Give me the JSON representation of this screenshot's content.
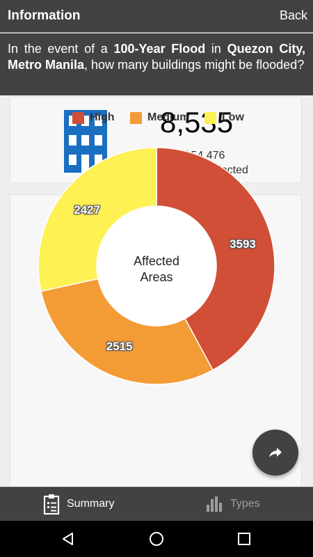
{
  "header": {
    "title": "Information",
    "back_label": "Back"
  },
  "question": {
    "prefix": "In the event of a ",
    "scenario": "100-Year Flood",
    "mid": " in ",
    "location": "Quezon City, Metro Manila",
    "suffix": ", how many buildings might be flooded?"
  },
  "summary": {
    "icon": "building-icon",
    "value": "8,535",
    "out_of": "out of 54,476",
    "caption": "Buildings Affected"
  },
  "chart_data": {
    "type": "pie",
    "title": "",
    "center_label_line1": "Affected",
    "center_label_line2": "Areas",
    "categories": [
      "High",
      "Medium",
      "Low"
    ],
    "values": [
      3593,
      2515,
      2427
    ],
    "colors": [
      "#d04f36",
      "#f39c35",
      "#fdf154"
    ],
    "legend_position": "top"
  },
  "fab": {
    "icon": "share-icon"
  },
  "tabs": [
    {
      "label": "Summary",
      "icon": "clipboard-icon",
      "active": true
    },
    {
      "label": "Types",
      "icon": "bar-chart-icon",
      "active": false
    }
  ],
  "navbar": {
    "back_icon": "nav-back-icon",
    "home_icon": "nav-home-icon",
    "recents_icon": "nav-recents-icon"
  },
  "colors": {
    "header_bg": "#424242",
    "tab_active": "#ffffff",
    "tab_inactive": "#9e9e9e",
    "icon_blue": "#1a6fc1"
  }
}
